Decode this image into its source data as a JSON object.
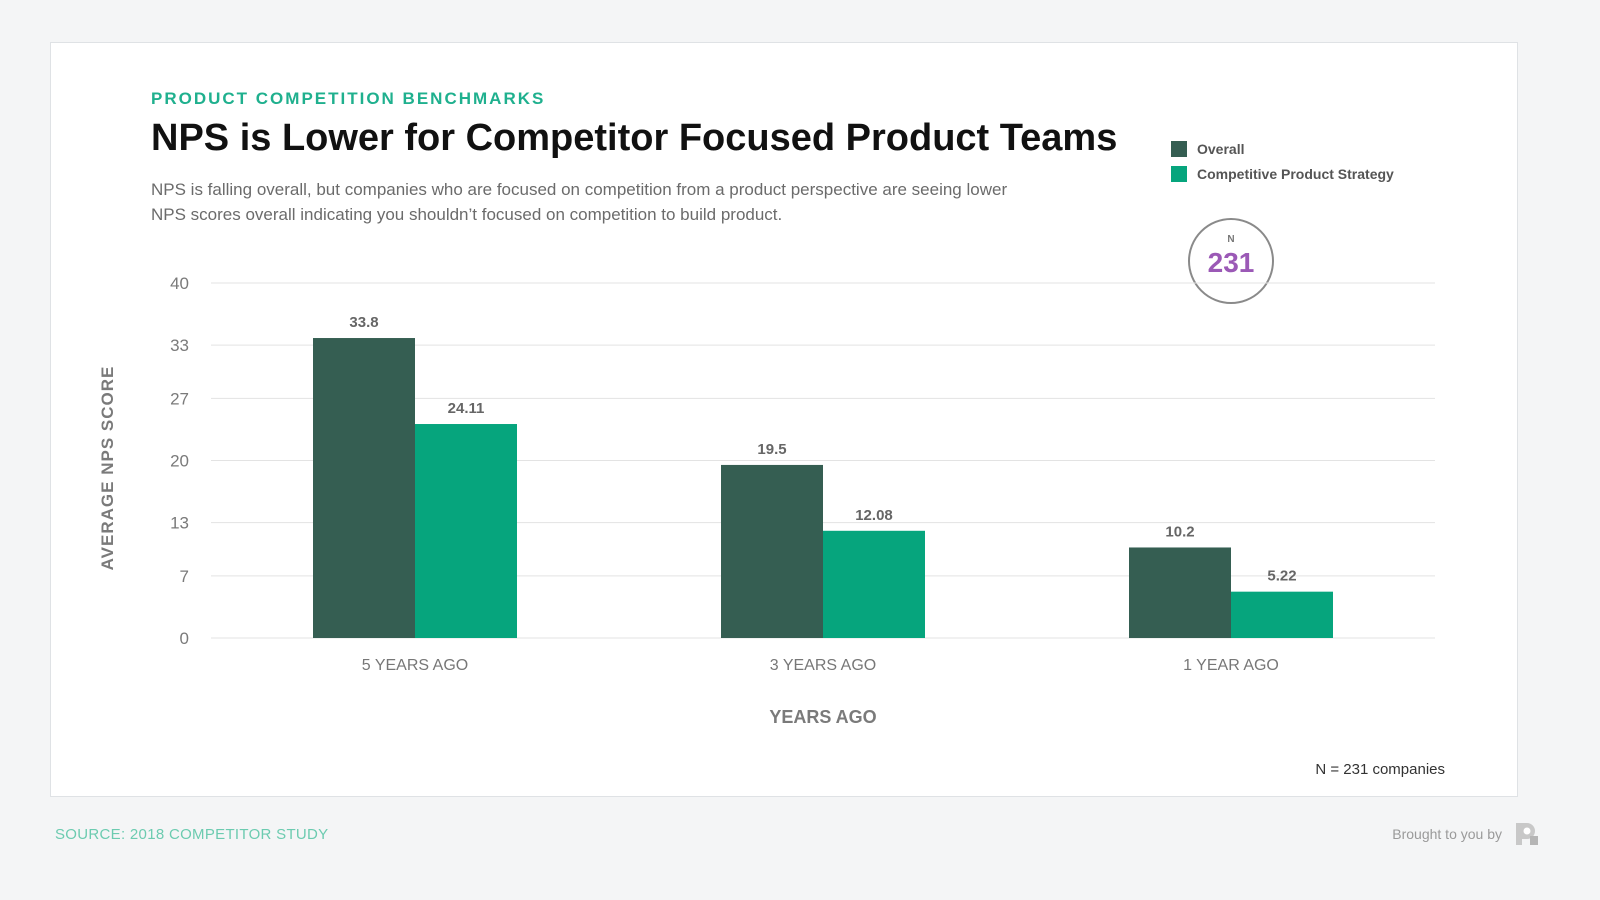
{
  "header": {
    "eyebrow": "PRODUCT COMPETITION BENCHMARKS",
    "title": "NPS is Lower for Competitor Focused Product Teams",
    "subtitle": "NPS is falling overall, but companies who are focused on competition from a product perspective are seeing lower NPS scores overall indicating you shouldn’t focused on competition to build product."
  },
  "badge": {
    "label": "N",
    "value": "231"
  },
  "footnote": "N = 231 companies",
  "footer": {
    "source": "SOURCE: 2018 COMPETITOR STUDY",
    "brought_by": "Brought to you by",
    "logo_icon": "brand-logo-icon"
  },
  "colors": {
    "overall": "#355e52",
    "competitive": "#06a57d",
    "accent": "#1fb08e",
    "badge": "#9b59b6"
  },
  "chart_data": {
    "type": "bar",
    "categories": [
      "5 YEARS AGO",
      "3 YEARS AGO",
      "1 YEAR AGO"
    ],
    "series": [
      {
        "name": "Overall",
        "values": [
          33.8,
          19.5,
          10.2
        ],
        "labels": [
          "33.8",
          "19.5",
          "10.2"
        ]
      },
      {
        "name": "Competitive Product Strategy",
        "values": [
          24.11,
          12.08,
          5.22
        ],
        "labels": [
          "24.11",
          "12.08",
          "5.22"
        ]
      }
    ],
    "xlabel": "YEARS AGO",
    "ylabel": "AVERAGE NPS SCORE",
    "ylim": [
      0,
      40
    ],
    "yticks": [
      0,
      7,
      13,
      20,
      27,
      33,
      40
    ],
    "ytick_labels": [
      "0",
      "7",
      "13",
      "20",
      "27",
      "33",
      "40"
    ],
    "grid": true,
    "legend": "top-right"
  }
}
